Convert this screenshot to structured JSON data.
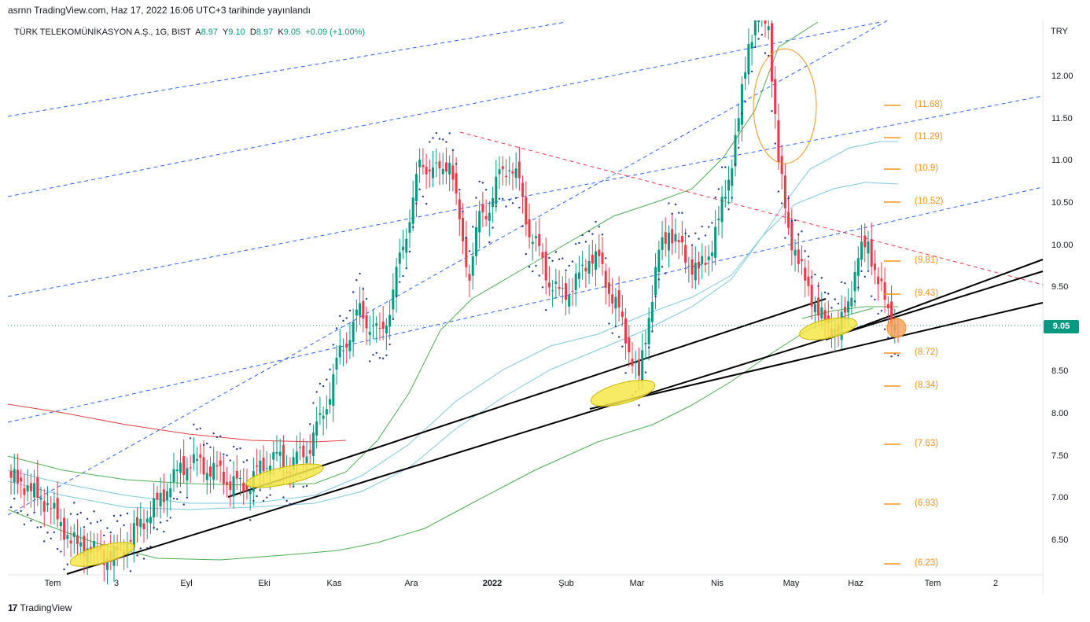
{
  "byline": "asrnn TradingView.com, Haz 17, 2022 16:06 UTC+3 tarihinde yayınlandı",
  "legend": {
    "symbol": "TÜRK TELEKOMÜNİKASYON A.Ş., 1G, BIST",
    "a_label": "A",
    "a_value": "8.97",
    "y_label": "Y",
    "y_value": "9.10",
    "d_label": "D",
    "d_value": "8.97",
    "k_label": "K",
    "k_value": "9.05",
    "change": "+0.09 (+1.00%)"
  },
  "currency": "TRY",
  "last_price": "9.05",
  "brand": "TradingView",
  "colors": {
    "up": "#089981",
    "down": "#f23645",
    "fib": "#f7931a",
    "channel": "#2962ff",
    "bb_outer": "#4caf50",
    "bb_inner": "#7ec8e3",
    "ma_red": "#e04040",
    "highlight": "#f6e64a"
  },
  "chart_data": {
    "type": "candlestick",
    "y_range": [
      6.1,
      12.8
    ],
    "y_ticks": [
      "12.00",
      "11.50",
      "11.00",
      "10.50",
      "10.00",
      "9.50",
      "9.00",
      "8.50",
      "8.00",
      "7.50",
      "7.00",
      "6.50"
    ],
    "x_ticks": [
      "Tem",
      "3",
      "Eyl",
      "Eki",
      "Kas",
      "Ara",
      "2022",
      "Şub",
      "Mar",
      "Nis",
      "May",
      "Haz",
      "Tem",
      "2"
    ],
    "fib_levels": [
      "(11.68)",
      "(11.29)",
      "(10.9)",
      "(10.52)",
      "(9.81)",
      "(9.43)",
      "(8.72)",
      "(8.34)",
      "(7.63)",
      "(6.93)",
      "(6.23)"
    ],
    "closes_anchor_series": [
      7.25,
      7.2,
      7.1,
      7.0,
      6.9,
      6.7,
      6.5,
      6.45,
      6.4,
      6.35,
      6.3,
      6.4,
      6.55,
      6.7,
      6.85,
      7.0,
      7.2,
      7.35,
      7.45,
      7.4,
      7.35,
      7.3,
      7.2,
      7.15,
      7.2,
      7.35,
      7.5,
      7.45,
      7.4,
      7.5,
      7.65,
      7.9,
      8.3,
      8.7,
      9.0,
      9.2,
      9.1,
      8.9,
      9.3,
      9.8,
      10.4,
      10.9,
      11.0,
      10.8,
      11.1,
      10.2,
      9.7,
      10.3,
      10.5,
      10.8,
      11.0,
      10.7,
      10.2,
      9.9,
      9.6,
      9.4,
      9.5,
      9.6,
      9.9,
      9.8,
      9.5,
      9.2,
      8.8,
      8.4,
      9.2,
      9.9,
      10.2,
      10.0,
      9.8,
      9.7,
      9.9,
      10.3,
      10.8,
      11.5,
      12.4,
      12.8,
      12.6,
      11.0,
      10.2,
      9.8,
      9.5,
      9.2,
      9.05,
      9.0,
      9.3,
      9.9,
      10.0,
      9.6,
      9.2,
      9.05
    ],
    "current_close": 9.05
  }
}
